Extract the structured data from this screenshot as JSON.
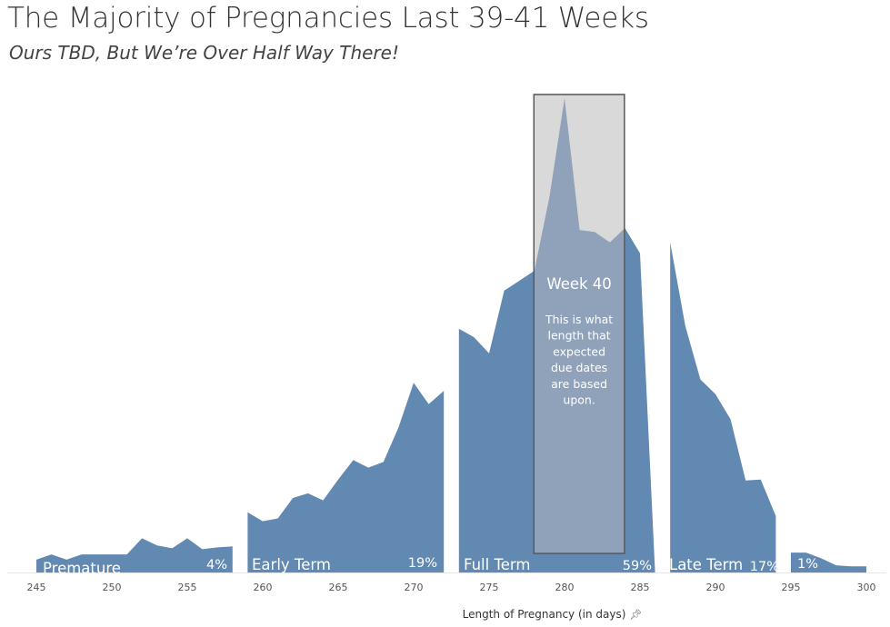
{
  "title": "The Majority of Pregnancies Last 39-41 Weeks",
  "subtitle": "Ours TBD, But We’re Over Half Way There!",
  "colors": {
    "area": "#6189b1",
    "highlight_fill": "#d9d9d9",
    "highlight_stroke": "#555555",
    "axis_text": "#555555",
    "title_text": "#333333"
  },
  "icons": {
    "pin": "pin-icon"
  },
  "chart_data": {
    "type": "area",
    "xlabel": "Length of Pregnancy (in days)",
    "ylabel": "",
    "xlim": [
      244,
      302
    ],
    "ylim": [
      0,
      100
    ],
    "xticks": [
      245,
      250,
      255,
      260,
      265,
      270,
      275,
      280,
      285,
      290,
      295,
      300
    ],
    "grid": false,
    "series": [
      {
        "name": "Premature",
        "percent_label": "4%",
        "x": [
          245,
          246,
          247,
          248,
          249,
          250,
          251,
          252,
          253,
          254,
          255,
          256,
          257,
          258
        ],
        "y": [
          2.7,
          3.8,
          2.7,
          3.8,
          3.8,
          3.8,
          3.8,
          7.2,
          5.7,
          5.1,
          7.2,
          4.9,
          5.3,
          5.5
        ]
      },
      {
        "name": "Early Term",
        "percent_label": "19%",
        "x": [
          259,
          260,
          261,
          262,
          263,
          264,
          265,
          266,
          267,
          268,
          269,
          270,
          271,
          272
        ],
        "y": [
          12.7,
          10.8,
          11.4,
          15.7,
          16.7,
          15.2,
          19.6,
          23.7,
          22.1,
          23.3,
          30.6,
          40.0,
          35.5,
          38.3
        ]
      },
      {
        "name": "Full Term",
        "percent_label": "59%",
        "x": [
          273,
          274,
          275,
          276,
          277,
          278,
          279,
          280,
          281,
          282,
          283,
          284,
          285,
          286
        ],
        "y": [
          51.4,
          49.6,
          46.2,
          59.4,
          61.5,
          63.6,
          79.2,
          100.0,
          72.2,
          71.8,
          69.6,
          72.6,
          67.3,
          0
        ]
      },
      {
        "name": "Late Term",
        "percent_label": "17%",
        "x": [
          287,
          288,
          289,
          290,
          291,
          292,
          293,
          294
        ],
        "y": [
          69.6,
          52.0,
          40.7,
          37.6,
          32.3,
          19.4,
          19.6,
          11.9
        ]
      },
      {
        "name": "",
        "percent_label": "1%",
        "x": [
          295,
          296,
          297,
          298,
          299,
          300
        ],
        "y": [
          4.2,
          4.2,
          3.0,
          1.5,
          1.3,
          1.3
        ]
      }
    ],
    "annotation": {
      "title": "Week 40",
      "text": "This is what length that expected due dates are based upon.",
      "lines": [
        "This is what",
        "length that",
        "expected",
        "due dates",
        "are based",
        "upon."
      ],
      "x_range": [
        278,
        284
      ]
    }
  }
}
